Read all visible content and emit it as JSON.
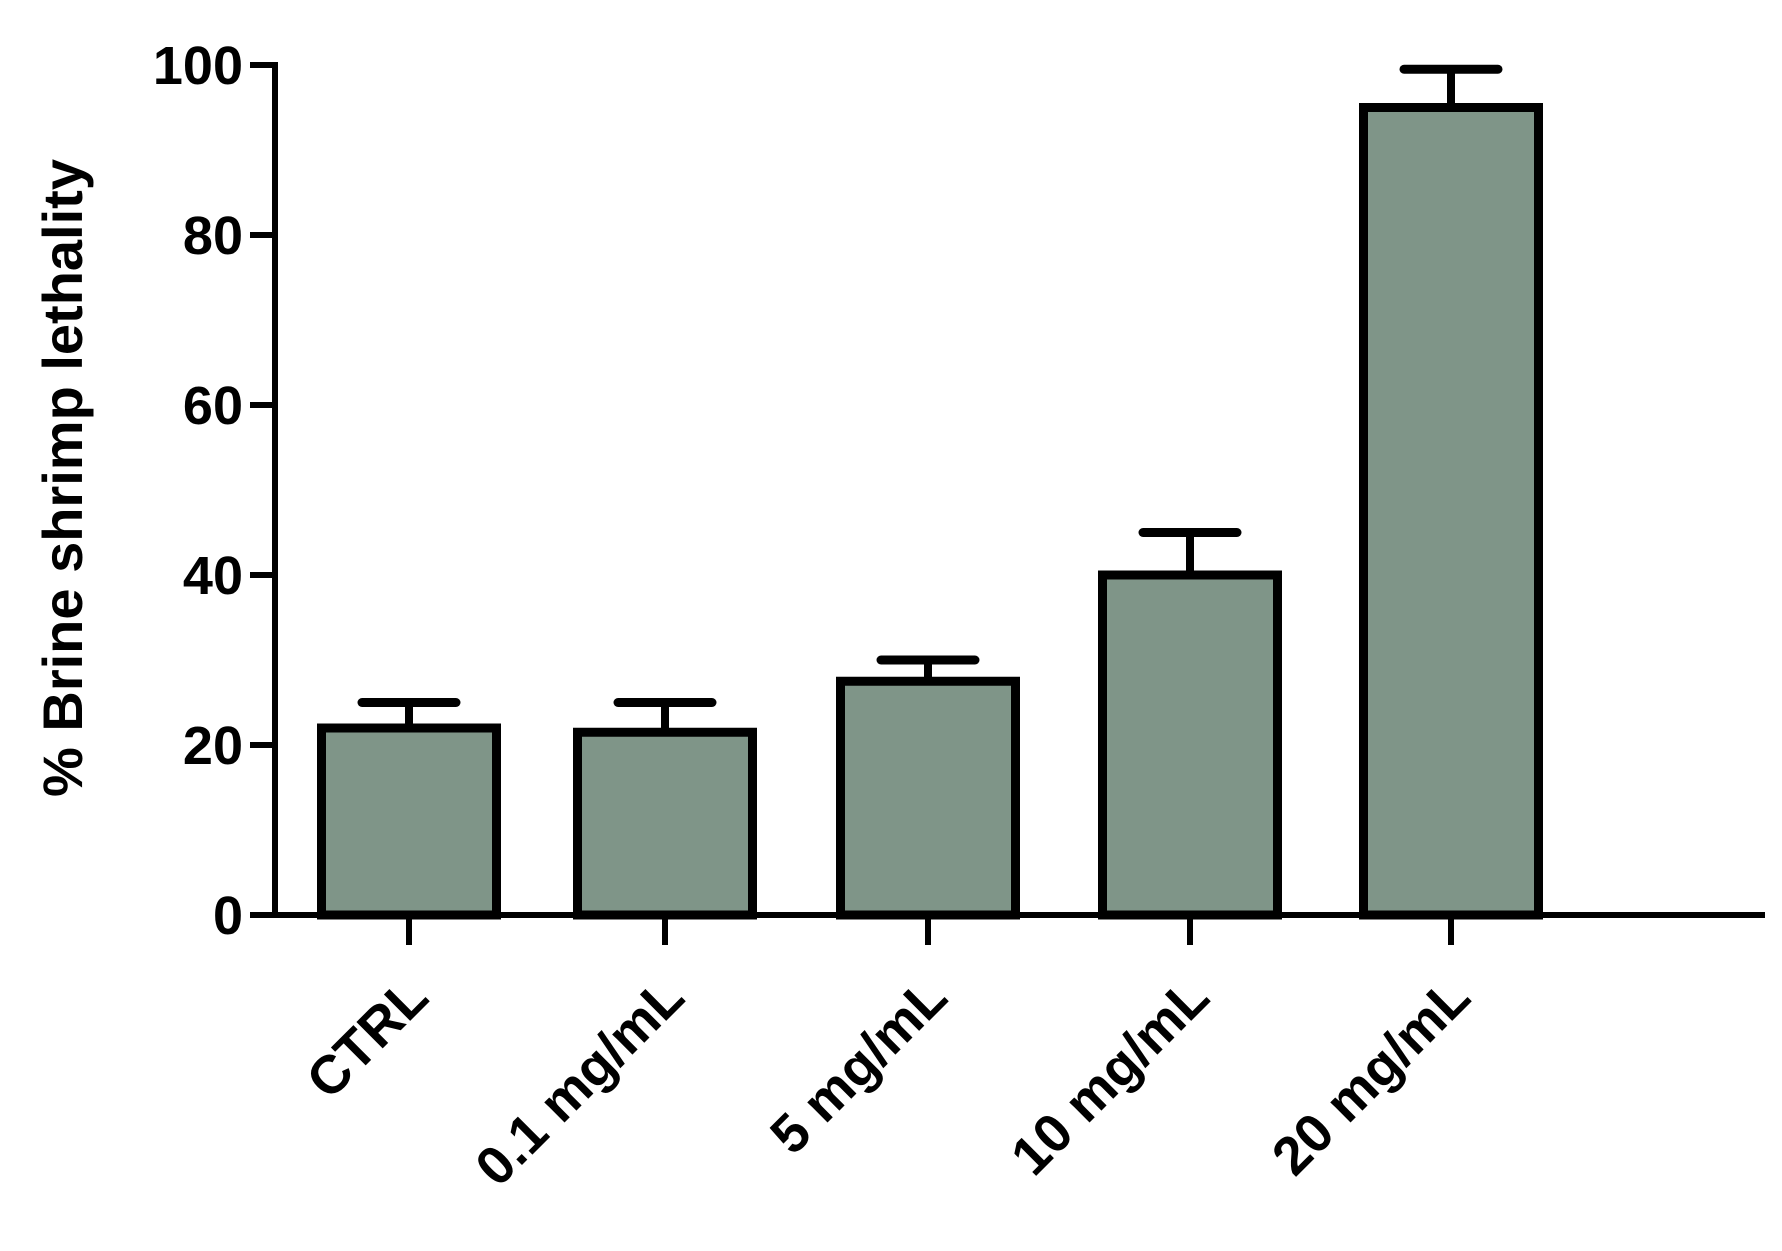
{
  "chart_data": {
    "type": "bar",
    "title": "",
    "xlabel": "",
    "ylabel": "% Brine shrimp lethality",
    "categories": [
      "CTRL",
      "0.1 mg/mL",
      "5 mg/mL",
      "10 mg/mL",
      "20 mg/mL"
    ],
    "values": [
      22,
      21.5,
      27.5,
      40,
      95
    ],
    "error_upper": [
      25,
      25,
      30,
      45,
      99.5
    ],
    "ylim": [
      0,
      100
    ],
    "yticks": [
      0,
      20,
      40,
      60,
      80,
      100
    ],
    "grid": false,
    "legend": "none",
    "bar_color": "#7f9588",
    "edge_color": "#000000"
  }
}
